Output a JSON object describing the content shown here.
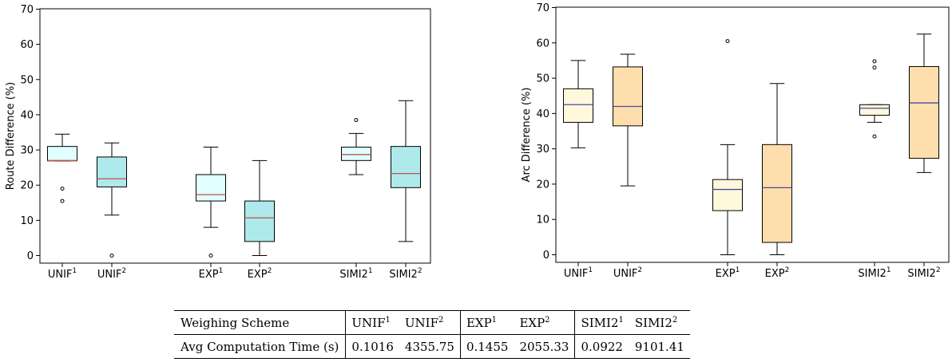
{
  "chart_data": [
    {
      "type": "box",
      "ylabel": "Route Difference (%)",
      "ylim": [
        0,
        70
      ],
      "yticks": [
        0,
        10,
        20,
        30,
        40,
        50,
        60,
        70
      ],
      "categories": [
        {
          "base": "UNIF",
          "sup": "1"
        },
        {
          "base": "UNIF",
          "sup": "2"
        },
        {
          "base": "EXP",
          "sup": "1"
        },
        {
          "base": "EXP",
          "sup": "2"
        },
        {
          "base": "SIMI2",
          "sup": "1"
        },
        {
          "base": "SIMI2",
          "sup": "2"
        }
      ],
      "box_colors": [
        "#e0ffff",
        "#aeeaec",
        "#e0ffff",
        "#aeeaec",
        "#e0ffff",
        "#aeeaec"
      ],
      "median_color": "#c0504d",
      "boxes": [
        {
          "whislo": 26.9,
          "q1": 26.9,
          "med": 27.0,
          "q3": 31.0,
          "whishi": 34.5,
          "fliers": [
            19.0,
            15.5
          ]
        },
        {
          "whislo": 11.5,
          "q1": 19.5,
          "med": 21.8,
          "q3": 28.0,
          "whishi": 32.0,
          "fliers": [
            0.0
          ]
        },
        {
          "whislo": 8.0,
          "q1": 15.5,
          "med": 17.3,
          "q3": 23.0,
          "whishi": 30.8,
          "fliers": [
            0.0
          ]
        },
        {
          "whislo": 0.0,
          "q1": 4.0,
          "med": 10.7,
          "q3": 15.5,
          "whishi": 27.0,
          "fliers": []
        },
        {
          "whislo": 23.0,
          "q1": 27.0,
          "med": 28.7,
          "q3": 30.8,
          "whishi": 34.7,
          "fliers": [
            38.5
          ]
        },
        {
          "whislo": 4.0,
          "q1": 19.3,
          "med": 23.3,
          "q3": 31.0,
          "whishi": 44.0,
          "fliers": []
        }
      ]
    },
    {
      "type": "box",
      "ylabel": "Arc Difference (%)",
      "ylim": [
        0,
        70
      ],
      "yticks": [
        0,
        10,
        20,
        30,
        40,
        50,
        60,
        70
      ],
      "categories": [
        {
          "base": "UNIF",
          "sup": "1"
        },
        {
          "base": "UNIF",
          "sup": "2"
        },
        {
          "base": "EXP",
          "sup": "1"
        },
        {
          "base": "EXP",
          "sup": "2"
        },
        {
          "base": "SIMI2",
          "sup": "1"
        },
        {
          "base": "SIMI2",
          "sup": "2"
        }
      ],
      "box_colors": [
        "#fff8dc",
        "#ffdead",
        "#fff8dc",
        "#ffdead",
        "#fff8dc",
        "#ffdead"
      ],
      "median_color": "#4a4aa0",
      "boxes": [
        {
          "whislo": 30.3,
          "q1": 37.5,
          "med": 42.5,
          "q3": 47.0,
          "whishi": 55.0,
          "fliers": []
        },
        {
          "whislo": 19.5,
          "q1": 36.5,
          "med": 42.0,
          "q3": 53.2,
          "whishi": 56.8,
          "fliers": []
        },
        {
          "whislo": 0.0,
          "q1": 12.5,
          "med": 18.5,
          "q3": 21.3,
          "whishi": 31.2,
          "fliers": [
            60.5
          ]
        },
        {
          "whislo": 0.0,
          "q1": 3.5,
          "med": 19.0,
          "q3": 31.2,
          "whishi": 48.5,
          "fliers": []
        },
        {
          "whislo": 37.5,
          "q1": 39.5,
          "med": 41.5,
          "q3": 42.5,
          "whishi": 42.5,
          "fliers": [
            33.5,
            53.0,
            54.8
          ]
        },
        {
          "whislo": 23.3,
          "q1": 27.3,
          "med": 43.0,
          "q3": 53.3,
          "whishi": 62.5,
          "fliers": []
        }
      ]
    }
  ],
  "table": {
    "header_label": "Weighing Scheme",
    "row_label": "Avg Computation Time (s)",
    "columns": [
      {
        "base": "UNIF",
        "sup": "1",
        "value": "0.1016"
      },
      {
        "base": "UNIF",
        "sup": "2",
        "value": "4355.75"
      },
      {
        "base": "EXP",
        "sup": "1",
        "value": "0.1455"
      },
      {
        "base": "EXP",
        "sup": "2",
        "value": "2055.33"
      },
      {
        "base": "SIMI2",
        "sup": "1",
        "value": "0.0922"
      },
      {
        "base": "SIMI2",
        "sup": "2",
        "value": "9101.41"
      }
    ]
  }
}
